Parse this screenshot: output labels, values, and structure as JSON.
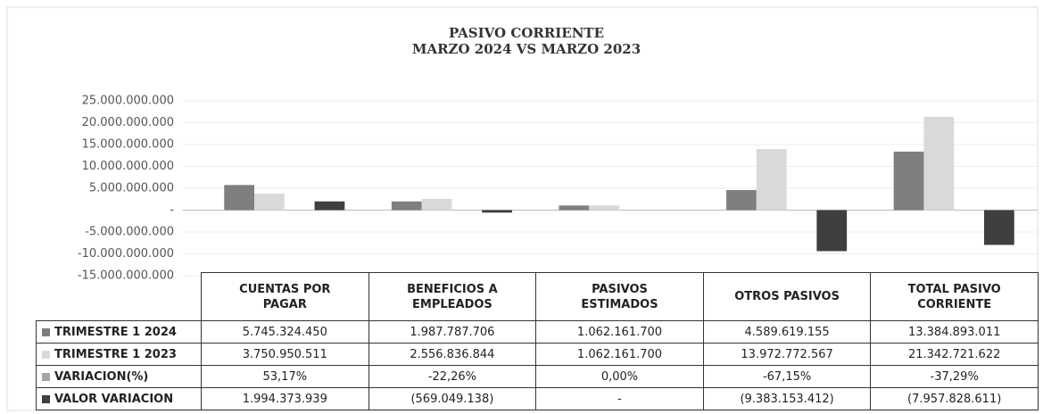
{
  "chart_data": {
    "type": "bar",
    "title": "PASIVO CORRIENTE",
    "subtitle": "MARZO 2024 VS MARZO 2023",
    "categories": [
      "CUENTAS POR PAGAR",
      "BENEFICIOS A EMPLEADOS",
      "PASIVOS ESTIMADOS",
      "OTROS PASIVOS",
      "TOTAL PASIVO CORRIENTE"
    ],
    "series": [
      {
        "name": "TRIMESTRE 1 2024",
        "color": "#7f7f7f",
        "values": [
          5745324450,
          1987787706,
          1062161700,
          4589619155,
          13384893011
        ],
        "value_labels": [
          "5.745.324.450",
          "1.987.787.706",
          "1.062.161.700",
          "4.589.619.155",
          "13.384.893.011"
        ]
      },
      {
        "name": "TRIMESTRE 1 2023",
        "color": "#d9d9d9",
        "values": [
          3750950511,
          2556836844,
          1062161700,
          13972772567,
          21342721622
        ],
        "value_labels": [
          "3.750.950.511",
          "2.556.836.844",
          "1.062.161.700",
          "13.972.772.567",
          "21.342.721.622"
        ]
      },
      {
        "name": "VARIACION(%)",
        "color": "#a6a6a6",
        "values": [
          53.17,
          -22.26,
          0.0,
          -67.15,
          -37.29
        ],
        "value_labels": [
          "53,17%",
          "-22,26%",
          "0,00%",
          "-67,15%",
          "-37,29%"
        ]
      },
      {
        "name": "VALOR VARIACION",
        "color": "#3f3f3f",
        "values": [
          1994373939,
          -569049138,
          0,
          -9383153412,
          -7957828611
        ],
        "value_labels": [
          "1.994.373.939",
          "(569.049.138)",
          "-",
          "(9.383.153.412)",
          "(7.957.828.611)"
        ]
      }
    ],
    "ylim": [
      -15000000000,
      25000000000
    ],
    "yticks": [
      {
        "value": -15000000000,
        "label": "-15.000.000.000"
      },
      {
        "value": -10000000000,
        "label": "-10.000.000.000"
      },
      {
        "value": -5000000000,
        "label": "-5.000.000.000"
      },
      {
        "value": 0,
        "label": "-"
      },
      {
        "value": 5000000000,
        "label": "5.000.000.000"
      },
      {
        "value": 10000000000,
        "label": "10.000.000.000"
      },
      {
        "value": 15000000000,
        "label": "15.000.000.000"
      },
      {
        "value": 20000000000,
        "label": "20.000.000.000"
      },
      {
        "value": 25000000000,
        "label": "25.000.000.000"
      }
    ],
    "grid": true
  }
}
